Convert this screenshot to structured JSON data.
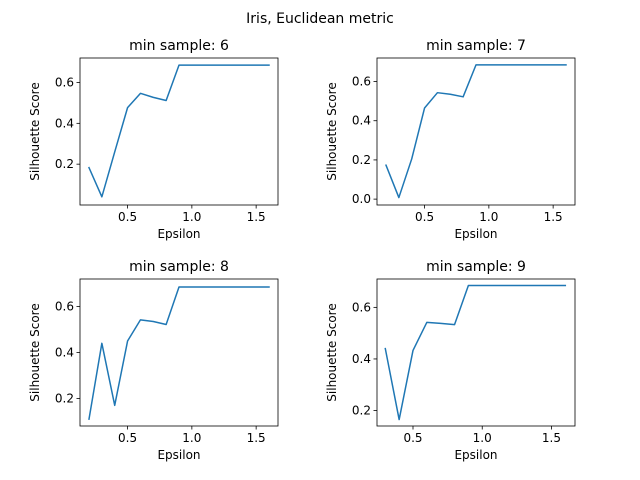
{
  "figure": {
    "suptitle": "Iris, Euclidean metric"
  },
  "chart_data": [
    {
      "type": "line",
      "title": "min sample: 6",
      "xlabel": "Epsilon",
      "ylabel": "Silhouette Score",
      "xlim": [
        0.13,
        1.67
      ],
      "ylim": [
        0.0,
        0.72
      ],
      "xticks": [
        0.5,
        1.0,
        1.5
      ],
      "xticklabels": [
        "0.5",
        "1.0",
        "1.5"
      ],
      "yticks": [
        0.2,
        0.4,
        0.6
      ],
      "yticklabels": [
        "0.2",
        "0.4",
        "0.6"
      ],
      "grid": false,
      "color": "#1f77b4",
      "x": [
        0.2,
        0.3,
        0.4,
        0.5,
        0.6,
        0.7,
        0.8,
        0.9,
        1.0,
        1.1,
        1.2,
        1.3,
        1.4,
        1.5,
        1.6
      ],
      "y": [
        0.183,
        0.04,
        0.26,
        0.477,
        0.547,
        0.527,
        0.512,
        0.685,
        0.685,
        0.685,
        0.685,
        0.685,
        0.685,
        0.685,
        0.685
      ]
    },
    {
      "type": "line",
      "title": "min sample: 7",
      "xlabel": "Epsilon",
      "ylabel": "Silhouette Score",
      "xlim": [
        0.13,
        1.67
      ],
      "ylim": [
        -0.03,
        0.72
      ],
      "xticks": [
        0.5,
        1.0,
        1.5
      ],
      "xticklabels": [
        "0.5",
        "1.0",
        "1.5"
      ],
      "yticks": [
        0.0,
        0.2,
        0.4,
        0.6
      ],
      "yticklabels": [
        "0.0",
        "0.2",
        "0.4",
        "0.6"
      ],
      "grid": false,
      "color": "#1f77b4",
      "x": [
        0.2,
        0.3,
        0.4,
        0.5,
        0.6,
        0.7,
        0.8,
        0.9,
        1.0,
        1.1,
        1.2,
        1.3,
        1.4,
        1.5,
        1.6
      ],
      "y": [
        0.173,
        0.008,
        0.205,
        0.465,
        0.543,
        0.535,
        0.522,
        0.685,
        0.685,
        0.685,
        0.685,
        0.685,
        0.685,
        0.685,
        0.685
      ]
    },
    {
      "type": "line",
      "title": "min sample: 8",
      "xlabel": "Epsilon",
      "ylabel": "Silhouette Score",
      "xlim": [
        0.13,
        1.67
      ],
      "ylim": [
        0.08,
        0.72
      ],
      "xticks": [
        0.5,
        1.0,
        1.5
      ],
      "xticklabels": [
        "0.5",
        "1.0",
        "1.5"
      ],
      "yticks": [
        0.2,
        0.4,
        0.6
      ],
      "yticklabels": [
        "0.2",
        "0.4",
        "0.6"
      ],
      "grid": false,
      "color": "#1f77b4",
      "x": [
        0.2,
        0.3,
        0.4,
        0.5,
        0.6,
        0.7,
        0.8,
        0.9,
        1.0,
        1.1,
        1.2,
        1.3,
        1.4,
        1.5,
        1.6
      ],
      "y": [
        0.11,
        0.44,
        0.17,
        0.45,
        0.542,
        0.535,
        0.522,
        0.685,
        0.685,
        0.685,
        0.685,
        0.685,
        0.685,
        0.685,
        0.685
      ]
    },
    {
      "type": "line",
      "title": "min sample: 9",
      "xlabel": "Epsilon",
      "ylabel": "Silhouette Score",
      "xlim": [
        0.24,
        1.67
      ],
      "ylim": [
        0.14,
        0.71
      ],
      "xticks": [
        0.5,
        1.0,
        1.5
      ],
      "xticklabels": [
        "0.5",
        "1.0",
        "1.5"
      ],
      "yticks": [
        0.2,
        0.4,
        0.6
      ],
      "yticklabels": [
        "0.2",
        "0.4",
        "0.6"
      ],
      "grid": false,
      "color": "#1f77b4",
      "x": [
        0.3,
        0.4,
        0.5,
        0.6,
        0.7,
        0.8,
        0.9,
        1.0,
        1.1,
        1.2,
        1.3,
        1.4,
        1.5,
        1.6
      ],
      "y": [
        0.44,
        0.165,
        0.433,
        0.542,
        0.538,
        0.533,
        0.685,
        0.685,
        0.685,
        0.685,
        0.685,
        0.685,
        0.685,
        0.685
      ]
    }
  ]
}
